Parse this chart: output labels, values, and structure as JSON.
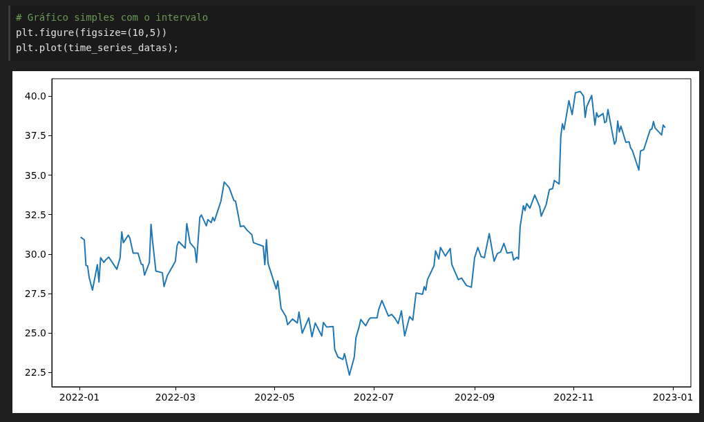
{
  "chart_data": {
    "type": "line",
    "annotations": [
      "# Gráfico simples com o intervalo",
      "plt.figure(figsize=(10,5))",
      "plt.plot(time_series_datas);"
    ],
    "x": [
      "2022-01-02",
      "2022-01-04",
      "2022-01-05",
      "2022-01-06",
      "2022-01-07",
      "2022-01-09",
      "2022-01-12",
      "2022-01-13",
      "2022-01-14",
      "2022-01-16",
      "2022-01-17",
      "2022-01-19",
      "2022-01-24",
      "2022-01-26",
      "2022-01-27",
      "2022-01-28",
      "2022-01-31",
      "2022-02-01",
      "2022-02-03",
      "2022-02-06",
      "2022-02-08",
      "2022-02-09",
      "2022-02-10",
      "2022-02-13",
      "2022-02-14",
      "2022-02-15",
      "2022-02-17",
      "2022-02-21",
      "2022-02-22",
      "2022-02-24",
      "2022-03-01",
      "2022-03-02",
      "2022-03-03",
      "2022-03-07",
      "2022-03-08",
      "2022-03-10",
      "2022-03-13",
      "2022-03-14",
      "2022-03-16",
      "2022-03-17",
      "2022-03-20",
      "2022-03-21",
      "2022-03-23",
      "2022-03-24",
      "2022-03-25",
      "2022-03-29",
      "2022-03-31",
      "2022-04-03",
      "2022-04-06",
      "2022-04-07",
      "2022-04-10",
      "2022-04-12",
      "2022-04-14",
      "2022-04-17",
      "2022-04-18",
      "2022-04-24",
      "2022-04-25",
      "2022-04-26",
      "2022-04-27",
      "2022-05-02",
      "2022-05-03",
      "2022-05-05",
      "2022-05-08",
      "2022-05-09",
      "2022-05-12",
      "2022-05-15",
      "2022-05-16",
      "2022-05-18",
      "2022-05-22",
      "2022-05-24",
      "2022-05-26",
      "2022-05-30",
      "2022-05-31",
      "2022-06-02",
      "2022-06-06",
      "2022-06-07",
      "2022-06-09",
      "2022-06-12",
      "2022-06-13",
      "2022-06-16",
      "2022-06-19",
      "2022-06-20",
      "2022-06-22",
      "2022-06-23",
      "2022-06-26",
      "2022-06-28",
      "2022-06-29",
      "2022-07-03",
      "2022-07-04",
      "2022-07-06",
      "2022-07-10",
      "2022-07-12",
      "2022-07-14",
      "2022-07-16",
      "2022-07-18",
      "2022-07-20",
      "2022-07-23",
      "2022-07-25",
      "2022-07-27",
      "2022-07-31",
      "2022-08-01",
      "2022-08-02",
      "2022-08-03",
      "2022-08-07",
      "2022-08-08",
      "2022-08-10",
      "2022-08-11",
      "2022-08-14",
      "2022-08-17",
      "2022-08-18",
      "2022-08-22",
      "2022-08-24",
      "2022-08-27",
      "2022-08-30",
      "2022-09-01",
      "2022-09-03",
      "2022-09-05",
      "2022-09-07",
      "2022-09-10",
      "2022-09-12",
      "2022-09-13",
      "2022-09-15",
      "2022-09-17",
      "2022-09-19",
      "2022-09-21",
      "2022-09-24",
      "2022-09-25",
      "2022-09-27",
      "2022-09-28",
      "2022-09-29",
      "2022-10-01",
      "2022-10-02",
      "2022-10-03",
      "2022-10-05",
      "2022-10-08",
      "2022-10-11",
      "2022-10-12",
      "2022-10-15",
      "2022-10-17",
      "2022-10-19",
      "2022-10-20",
      "2022-10-23",
      "2022-10-24",
      "2022-10-25",
      "2022-10-26",
      "2022-10-29",
      "2022-10-31",
      "2022-11-02",
      "2022-11-05",
      "2022-11-07",
      "2022-11-08",
      "2022-11-09",
      "2022-11-12",
      "2022-11-14",
      "2022-11-15",
      "2022-11-16",
      "2022-11-19",
      "2022-11-20",
      "2022-11-21",
      "2022-11-22",
      "2022-11-26",
      "2022-11-27",
      "2022-11-28",
      "2022-11-29",
      "2022-11-30",
      "2022-12-03",
      "2022-12-05",
      "2022-12-06",
      "2022-12-07",
      "2022-12-11",
      "2022-12-12",
      "2022-12-14",
      "2022-12-18",
      "2022-12-19",
      "2022-12-20",
      "2022-12-21",
      "2022-12-25",
      "2022-12-26",
      "2022-12-27"
    ],
    "series": [
      {
        "color": "#1f77b4",
        "values": [
          31.05,
          30.9,
          29.28,
          29.25,
          28.5,
          27.72,
          29.33,
          28.23,
          29.77,
          29.47,
          29.62,
          29.81,
          29.04,
          29.77,
          31.4,
          30.72,
          31.2,
          31.01,
          30.06,
          30.06,
          29.36,
          29.33,
          28.67,
          29.47,
          31.89,
          30.79,
          28.92,
          28.82,
          27.94,
          28.63,
          29.55,
          30.53,
          30.79,
          30.38,
          31.93,
          30.72,
          30.35,
          29.47,
          32.32,
          32.47,
          31.79,
          32.18,
          31.99,
          32.32,
          32.1,
          33.35,
          34.56,
          34.22,
          33.39,
          33.35,
          31.74,
          31.79,
          31.52,
          31.23,
          30.72,
          30.5,
          29.33,
          30.91,
          29.4,
          27.79,
          28.3,
          26.55,
          26.04,
          25.53,
          25.89,
          25.64,
          26.33,
          24.99,
          25.96,
          24.77,
          25.63,
          24.82,
          25.67,
          25.38,
          25.41,
          23.95,
          23.48,
          23.33,
          23.7,
          22.34,
          23.48,
          24.68,
          25.41,
          25.86,
          25.46,
          25.86,
          25.96,
          25.96,
          26.48,
          27.06,
          26.08,
          26.18,
          25.94,
          25.6,
          26.4,
          24.82,
          26.04,
          25.82,
          27.54,
          27.46,
          27.94,
          27.72,
          28.38,
          29.25,
          30.2,
          29.69,
          30.42,
          29.88,
          30.35,
          29.33,
          28.38,
          28.48,
          28.01,
          27.9,
          29.77,
          30.42,
          29.84,
          29.77,
          31.3,
          30.13,
          29.55,
          30.03,
          30.13,
          30.68,
          30.06,
          30.13,
          29.62,
          29.8,
          29.69,
          31.74,
          33.06,
          32.76,
          33.2,
          32.91,
          33.74,
          33.01,
          32.4,
          33.13,
          34.08,
          34.15,
          34.66,
          34.44,
          37.44,
          38.25,
          37.88,
          39.71,
          38.83,
          40.22,
          40.29,
          40.0,
          38.65,
          39.34,
          40.04,
          38.17,
          38.95,
          38.68,
          38.9,
          38.32,
          38.39,
          39.15,
          36.96,
          37.15,
          38.42,
          37.73,
          38.1,
          37.08,
          37.11,
          36.71,
          36.57,
          35.32,
          36.52,
          36.61,
          37.88,
          37.91,
          38.39,
          37.98,
          37.54,
          38.17,
          38.03
        ]
      }
    ],
    "xlim": [
      "2021-12-15",
      "2023-01-12"
    ],
    "ylim": [
      21.6,
      41.1
    ],
    "xticks": [
      "2022-01",
      "2022-03",
      "2022-05",
      "2022-07",
      "2022-09",
      "2022-11",
      "2023-01"
    ],
    "yticks": [
      {
        "value": 22.5,
        "label": "22.5"
      },
      {
        "value": 25,
        "label": "25.0"
      },
      {
        "value": 27.5,
        "label": "27.5"
      },
      {
        "value": 30,
        "label": "30.0"
      },
      {
        "value": 32.5,
        "label": "32.5"
      },
      {
        "value": 35,
        "label": "35.0"
      },
      {
        "value": 37.5,
        "label": "37.5"
      },
      {
        "value": 40,
        "label": "40.0"
      }
    ],
    "grid": false,
    "marker": "none",
    "line_style": "solid"
  }
}
